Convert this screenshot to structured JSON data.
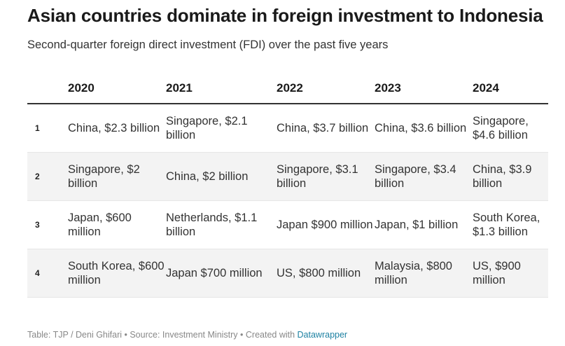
{
  "chart_data": {
    "type": "table",
    "title": "Asian countries dominate in foreign investment to Indonesia",
    "subtitle": "Second-quarter foreign direct investment (FDI) over the past five years",
    "columns": [
      "",
      "2020",
      "2021",
      "2022",
      "2023",
      "2024"
    ],
    "rows": [
      {
        "rank": "1",
        "cells": [
          "China, $2.3 billion",
          "Singapore, $2.1 billion",
          "China, $3.7 billion",
          "China, $3.6 billion",
          "Singapore, $4.6 billion"
        ]
      },
      {
        "rank": "2",
        "cells": [
          "Singapore, $2 billion",
          "China, $2 billion",
          "Singapore, $3.1 billion",
          "Singapore, $3.4 billion",
          "China, $3.9 billion"
        ]
      },
      {
        "rank": "3",
        "cells": [
          "Japan, $600 million",
          "Netherlands, $1.1 billion",
          "Japan $900 million",
          "Japan, $1 billion",
          "South Korea, $1.3 billion"
        ]
      },
      {
        "rank": "4",
        "cells": [
          "South Korea, $600 million",
          "Japan $700 million",
          "US, $800 million",
          "Malaysia, $800 million",
          "US, $900 million"
        ]
      }
    ]
  },
  "footer": {
    "text": "Table: TJP / Deni Ghifari • Source: Investment Ministry • Created with ",
    "link": "Datawrapper"
  },
  "colors": {
    "row_alt_background": "#f3f3f3",
    "header_rule": "#333333",
    "link": "#1d81a2"
  }
}
